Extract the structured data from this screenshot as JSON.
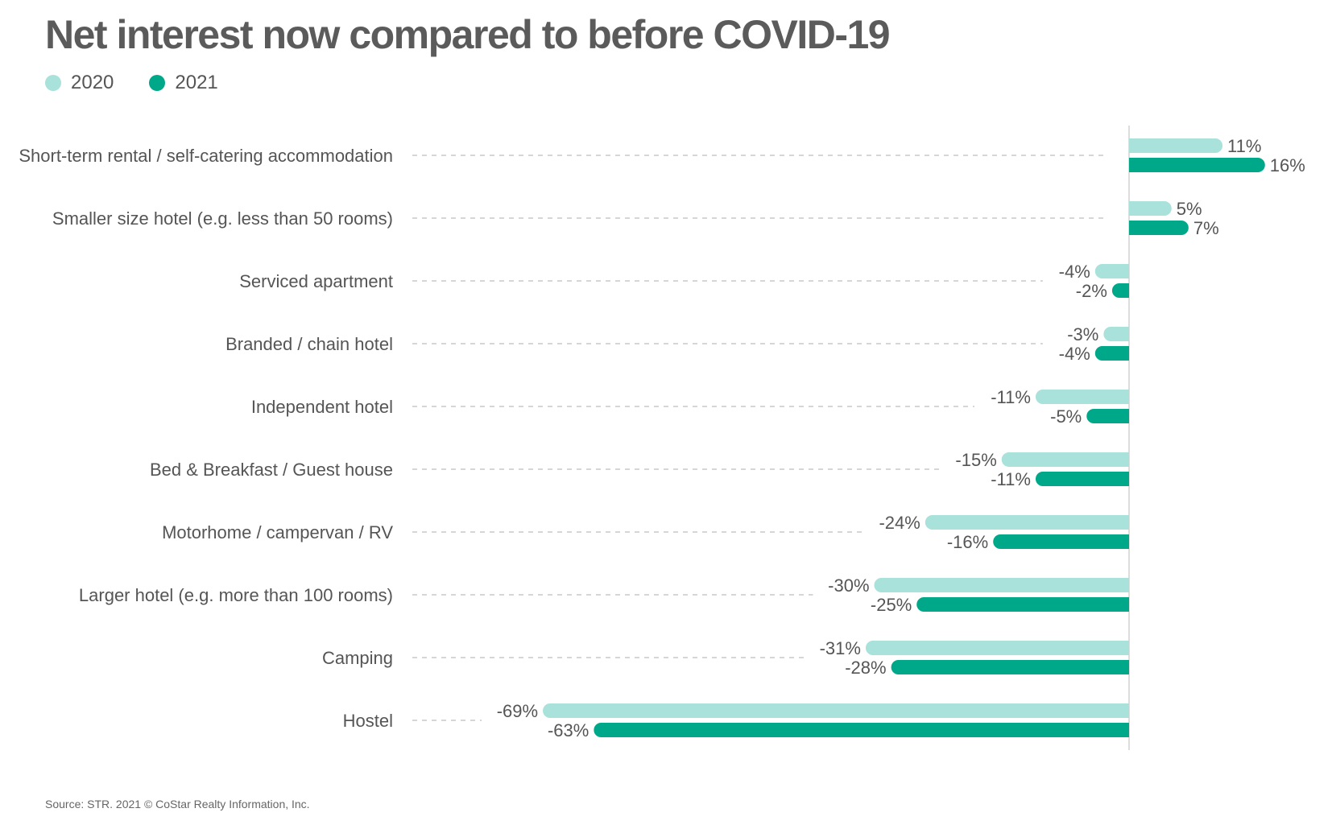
{
  "title": "Net interest now compared to before COVID-19",
  "source": "Source: STR. 2021 © CoStar Realty Information, Inc.",
  "colors": {
    "series_2020": "#a8e2da",
    "series_2021": "#00a88a",
    "text": "#555555",
    "leader": "#c8c8c8",
    "axis": "#dddddd"
  },
  "chart_data": {
    "type": "bar",
    "orientation": "horizontal",
    "categories": [
      "Short-term rental / self-catering accommodation",
      "Smaller size hotel (e.g. less than 50 rooms)",
      "Serviced apartment",
      "Branded / chain hotel",
      "Independent hotel",
      "Bed & Breakfast / Guest house",
      "Motorhome / campervan / RV",
      "Larger hotel (e.g. more than 100 rooms)",
      "Camping",
      "Hostel"
    ],
    "series": [
      {
        "name": "2020",
        "color": "#a8e2da",
        "values": [
          11,
          5,
          -4,
          -3,
          -11,
          -15,
          -24,
          -30,
          -31,
          -69
        ]
      },
      {
        "name": "2021",
        "color": "#00a88a",
        "values": [
          16,
          7,
          -2,
          -4,
          -5,
          -11,
          -16,
          -25,
          -28,
          -63
        ]
      }
    ],
    "value_labels": {
      "2020": [
        "11%",
        "5%",
        "-4%",
        "-3%",
        "-11%",
        "-15%",
        "-24%",
        "-30%",
        "-31%",
        "-69%"
      ],
      "2021": [
        "16%",
        "7%",
        "-2%",
        "-4%",
        "-5%",
        "-11%",
        "-16%",
        "-25%",
        "-28%",
        "-63%"
      ]
    },
    "unit": "%",
    "legend_position": "top-left",
    "grid": false,
    "xlim": [
      -80,
      20
    ]
  }
}
